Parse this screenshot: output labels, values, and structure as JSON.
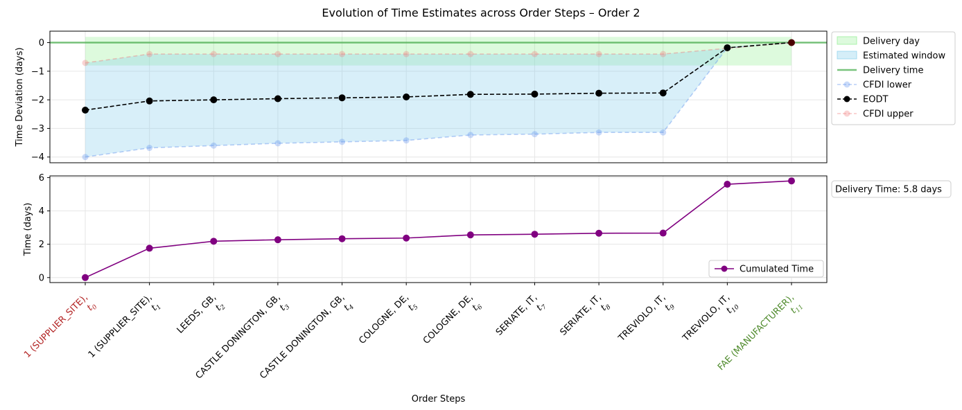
{
  "chart_data": [
    {
      "type": "line",
      "title": "Evolution of Time Estimates across Order Steps – Order 2",
      "xlabel": "",
      "ylabel": "Time Deviation (days)",
      "ylim": [
        -4.2,
        0.4
      ],
      "yticks": [
        0,
        -1,
        -2,
        -3,
        -4
      ],
      "grid": true,
      "legend_position": "outside-right",
      "series": [
        {
          "name": "CFDI lower",
          "values": [
            -4.0,
            -3.68,
            -3.6,
            -3.52,
            -3.47,
            -3.42,
            -3.23,
            -3.2,
            -3.14,
            -3.14,
            -0.18,
            0.0
          ],
          "color": "#6495ED"
        },
        {
          "name": "EODT",
          "values": [
            -2.36,
            -2.04,
            -2.0,
            -1.96,
            -1.93,
            -1.9,
            -1.81,
            -1.8,
            -1.77,
            -1.76,
            -0.18,
            0.0
          ],
          "color": "#000000"
        },
        {
          "name": "CFDI upper",
          "values": [
            -0.71,
            -0.4,
            -0.4,
            -0.4,
            -0.4,
            -0.4,
            -0.4,
            -0.4,
            -0.4,
            -0.4,
            -0.2,
            0.0
          ],
          "color": "#F08080"
        }
      ],
      "delivery_day": {
        "name": "Delivery day",
        "range": [
          -0.8,
          0.2
        ],
        "color": "#90EE90"
      },
      "estimated_window": {
        "name": "Estimated window",
        "color": "#87CEEB"
      },
      "delivery_time": {
        "name": "Delivery time",
        "value": 0,
        "color": "#4CAF50"
      },
      "final_marker_color": "#4B0000"
    },
    {
      "type": "line",
      "xlabel": "Order Steps",
      "ylabel": "Time (days)",
      "ylim": [
        -0.3,
        6.1
      ],
      "yticks": [
        0,
        2,
        4,
        6
      ],
      "grid": true,
      "legend_position": "lower-right",
      "series": [
        {
          "name": "Cumulated Time",
          "values": [
            0.0,
            1.76,
            2.18,
            2.27,
            2.33,
            2.37,
            2.56,
            2.6,
            2.66,
            2.67,
            5.6,
            5.8
          ],
          "color": "#800080"
        }
      ],
      "annotation": "Delivery Time: 5.8 days"
    }
  ],
  "x_ticks": [
    {
      "label": "1 (SUPPLIER_SITE)",
      "t": "t",
      "sub": "0",
      "color": "#B22222"
    },
    {
      "label": "1 (SUPPLIER_SITE)",
      "t": "t",
      "sub": "1",
      "color": "#000000"
    },
    {
      "label": "LEEDS, GB",
      "t": "t",
      "sub": "2",
      "color": "#000000"
    },
    {
      "label": "CASTLE DONINGTON, GB",
      "t": "t",
      "sub": "3",
      "color": "#000000"
    },
    {
      "label": "CASTLE DONINGTON, GB",
      "t": "t",
      "sub": "4",
      "color": "#000000"
    },
    {
      "label": "COLOGNE, DE",
      "t": "t",
      "sub": "5",
      "color": "#000000"
    },
    {
      "label": "COLOGNE, DE",
      "t": "t",
      "sub": "6",
      "color": "#000000"
    },
    {
      "label": "SERIATE, IT",
      "t": "t",
      "sub": "7",
      "color": "#000000"
    },
    {
      "label": "SERIATE, IT",
      "t": "t",
      "sub": "8",
      "color": "#000000"
    },
    {
      "label": "TREVIOLO, IT",
      "t": "t",
      "sub": "9",
      "color": "#000000"
    },
    {
      "label": "TREVIOLO, IT",
      "t": "t",
      "sub": "10",
      "color": "#000000"
    },
    {
      "label": "FAE (MANUFACTURER)",
      "t": "t",
      "sub": "11",
      "color": "#4E8A2B"
    }
  ]
}
